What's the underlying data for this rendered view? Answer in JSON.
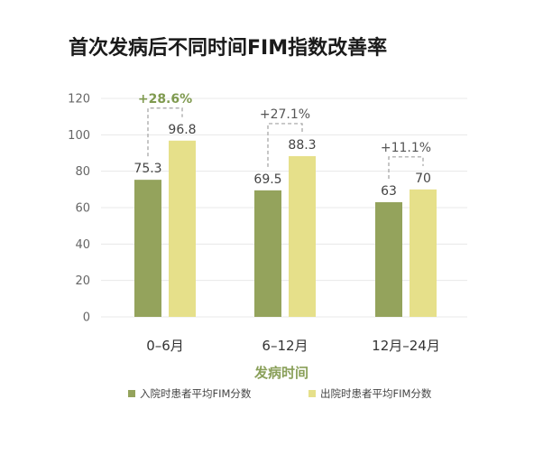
{
  "chart_data": {
    "type": "bar",
    "title": "首次发病后不同时间FIM指数改善率",
    "xlabel": "发病时间",
    "ylabel": "",
    "ylim": [
      0,
      120
    ],
    "yticks": [
      0,
      20,
      40,
      60,
      80,
      100,
      120
    ],
    "grid": true,
    "legend_position": "bottom",
    "categories": [
      "0–6月",
      "6–12月",
      "12月–24月"
    ],
    "series": [
      {
        "name": "入院时患者平均FIM分数",
        "color": "#94a35c",
        "values": [
          75.3,
          69.5,
          63
        ]
      },
      {
        "name": "出院时患者平均FIM分数",
        "color": "#e6e08a",
        "values": [
          96.8,
          88.3,
          70
        ]
      }
    ],
    "data_labels": [
      [
        "75.3",
        "69.5",
        "63"
      ],
      [
        "96.8",
        "88.3",
        "70"
      ]
    ],
    "improvement_labels": [
      "+28.6%",
      "+27.1%",
      "+11.1%"
    ],
    "improvement_colors": [
      "#7f9a4f",
      "#555555",
      "#555555"
    ]
  }
}
